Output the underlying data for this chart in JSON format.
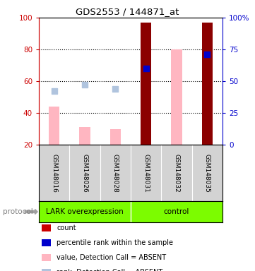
{
  "title": "GDS2553 / 144871_at",
  "samples": [
    "GSM148016",
    "GSM148026",
    "GSM148028",
    "GSM148031",
    "GSM148032",
    "GSM148035"
  ],
  "ylim_left": [
    20,
    100
  ],
  "yticks_left": [
    20,
    40,
    60,
    80,
    100
  ],
  "ytick_labels_right": [
    "0",
    "25",
    "50",
    "75",
    "100%"
  ],
  "bar_values": [
    null,
    null,
    null,
    97,
    null,
    97
  ],
  "bar_color": "#8B0000",
  "bar_width": 0.35,
  "absent_value_bars": [
    44,
    31,
    30,
    null,
    80,
    null
  ],
  "absent_value_color": "#FFB6C1",
  "absent_rank_dots": [
    54,
    58,
    55,
    null,
    null,
    null
  ],
  "absent_rank_color": "#B0C4DE",
  "percentile_rank_dots": [
    null,
    null,
    null,
    68,
    null,
    77
  ],
  "percentile_rank_color": "#0000CD",
  "dot_size": 35,
  "left_tick_color": "#CC0000",
  "right_tick_color": "#0000CC",
  "legend_items": [
    {
      "label": "count",
      "color": "#CC0000"
    },
    {
      "label": "percentile rank within the sample",
      "color": "#0000CC"
    },
    {
      "label": "value, Detection Call = ABSENT",
      "color": "#FFB6C1"
    },
    {
      "label": "rank, Detection Call = ABSENT",
      "color": "#B0C4DE"
    }
  ],
  "figsize": [
    3.61,
    3.84
  ],
  "dpi": 100
}
